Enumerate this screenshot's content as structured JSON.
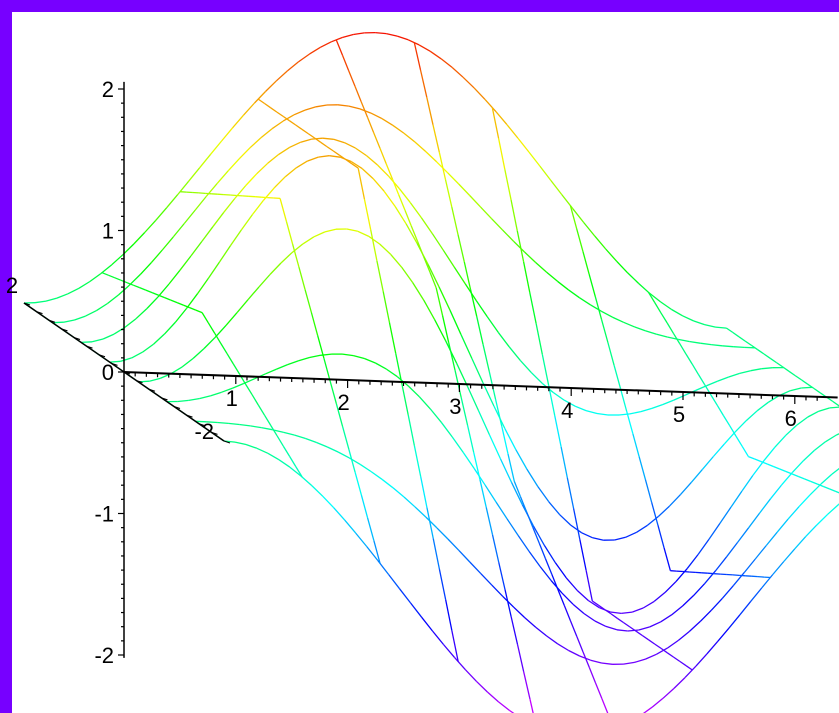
{
  "colors": {
    "frame": "#7700ff",
    "background": "#ffffff",
    "axis": "#000000"
  },
  "chart_data": {
    "type": "3d-wireframe",
    "title": "",
    "xlabel": "",
    "ylabel": "",
    "zlabel": "",
    "x_range": [
      0,
      6.2832
    ],
    "y_range": [
      -2,
      2
    ],
    "z_range": [
      -2,
      2
    ],
    "x_ticks": [
      {
        "value": 1,
        "label": "1"
      },
      {
        "value": 2,
        "label": "2"
      },
      {
        "value": 3,
        "label": "3"
      },
      {
        "value": 4,
        "label": "4"
      },
      {
        "value": 5,
        "label": "5"
      },
      {
        "value": 6,
        "label": "6"
      }
    ],
    "y_ticks": [
      {
        "value": -2,
        "label": "-2"
      },
      {
        "value": 2,
        "label": "2"
      }
    ],
    "z_ticks": [
      {
        "value": -2,
        "label": "-2"
      },
      {
        "value": -1,
        "label": "-1"
      },
      {
        "value": 0,
        "label": "0"
      },
      {
        "value": 1,
        "label": "1"
      },
      {
        "value": 2,
        "label": "2"
      }
    ],
    "color_scheme": "rainbow by z (magenta low to red high)",
    "legend": "none",
    "grid": false
  }
}
